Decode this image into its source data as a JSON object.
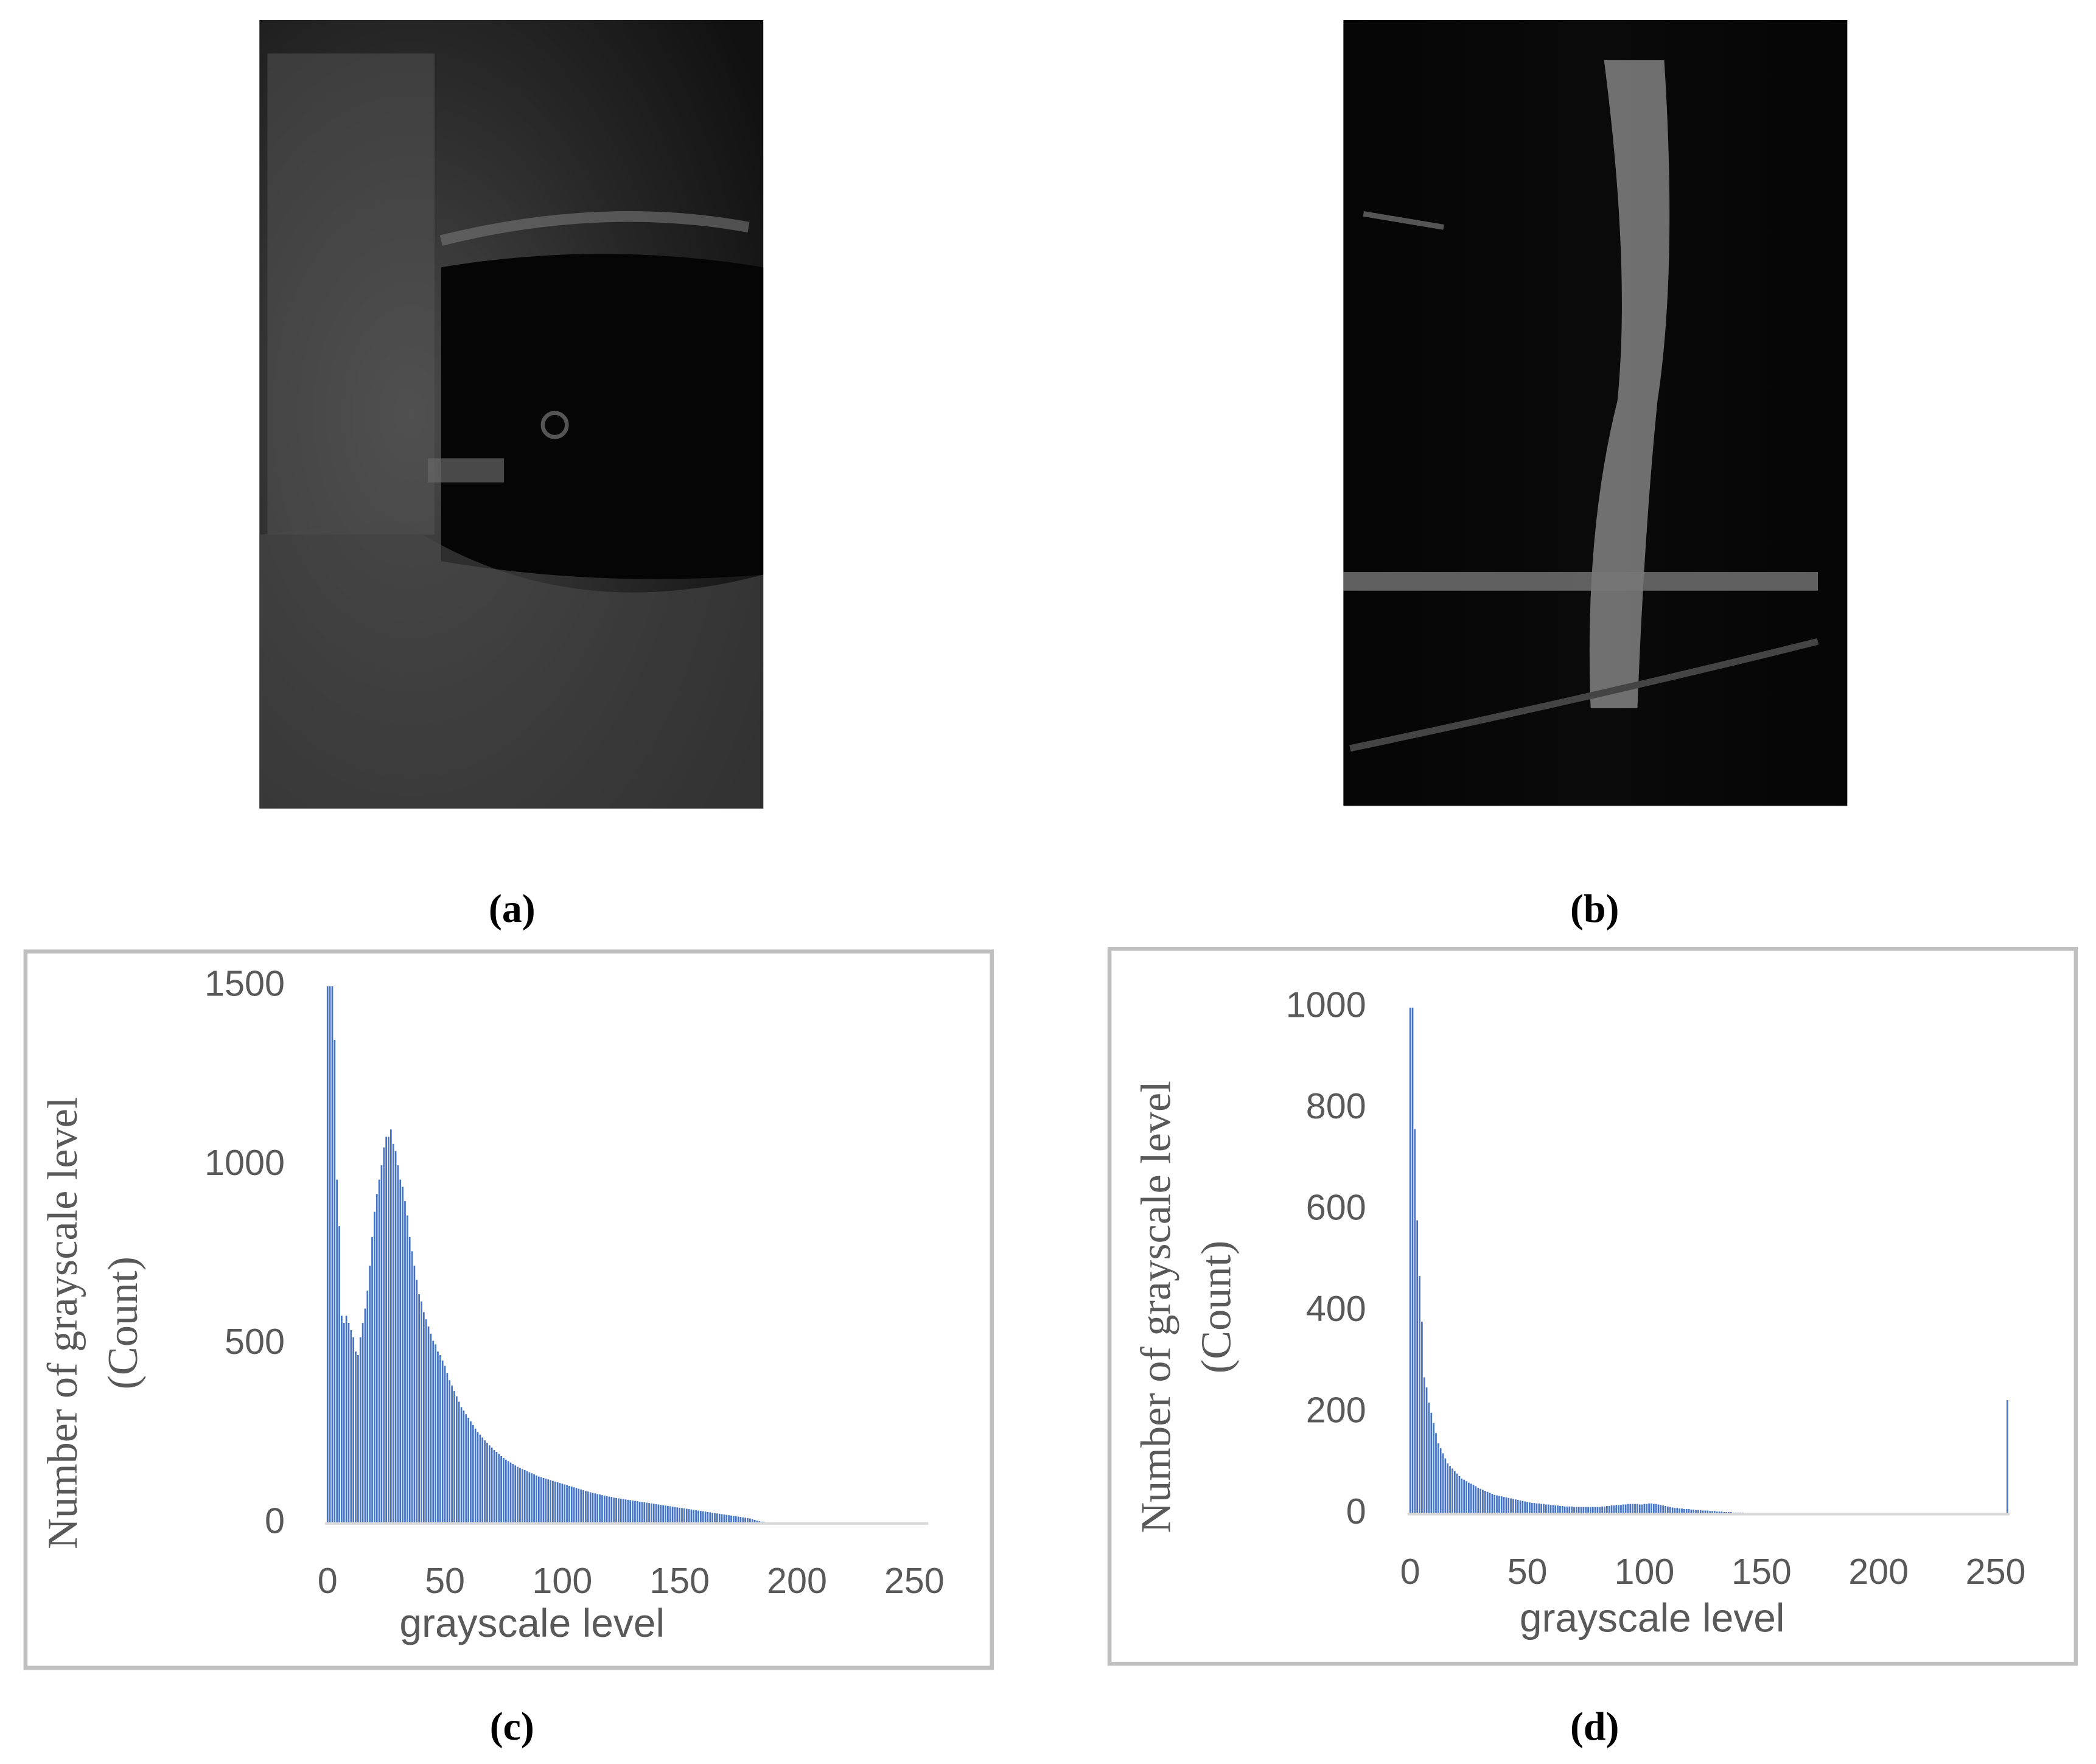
{
  "captions": [
    "(a)",
    "(b)",
    "(c)",
    "(d)"
  ],
  "chart_data": [
    {
      "type": "bar",
      "xlabel": "grayscale level",
      "ylabel": [
        "Number of grayscale level",
        "(Count)"
      ],
      "color": "#4472c4",
      "grid": false,
      "xlim": [
        0,
        256
      ],
      "xticks": [
        0,
        50,
        100,
        150,
        200,
        250
      ],
      "ylim": [
        0,
        1500
      ],
      "yticks": [
        0,
        500,
        1000,
        1500
      ],
      "x": [
        0,
        1,
        2,
        3,
        4,
        5,
        6,
        7,
        8,
        9,
        10,
        11,
        12,
        13,
        14,
        15,
        16,
        17,
        18,
        19,
        20,
        21,
        22,
        23,
        24,
        25,
        26,
        27,
        28,
        29,
        30,
        31,
        32,
        33,
        34,
        35,
        36,
        37,
        38,
        39,
        40,
        41,
        42,
        43,
        44,
        45,
        46,
        47,
        48,
        49,
        50,
        51,
        52,
        53,
        54,
        55,
        56,
        57,
        58,
        59,
        60,
        61,
        62,
        63,
        64,
        65,
        66,
        67,
        68,
        69,
        70,
        71,
        72,
        73,
        74,
        75,
        76,
        77,
        78,
        79,
        80,
        81,
        82,
        83,
        84,
        85,
        86,
        87,
        88,
        89,
        90,
        91,
        92,
        93,
        94,
        95,
        96,
        97,
        98,
        99,
        100,
        101,
        102,
        103,
        104,
        105,
        106,
        107,
        108,
        109,
        110,
        111,
        112,
        113,
        114,
        115,
        116,
        117,
        118,
        119,
        120,
        121,
        122,
        123,
        124,
        125,
        126,
        127,
        128,
        129,
        130,
        131,
        132,
        133,
        134,
        135,
        136,
        137,
        138,
        139,
        140,
        141,
        142,
        143,
        144,
        145,
        146,
        147,
        148,
        149,
        150,
        151,
        152,
        153,
        154,
        155,
        156,
        157,
        158,
        159,
        160,
        161,
        162,
        163,
        164,
        165,
        166,
        167,
        168,
        169,
        170,
        171,
        172,
        173,
        174,
        175,
        176,
        177,
        178,
        179,
        180,
        181,
        182,
        183,
        184,
        185,
        186,
        187,
        188,
        189,
        190,
        191,
        192,
        193,
        194,
        195,
        196,
        197,
        198,
        199,
        200,
        201,
        202,
        203,
        204,
        205,
        206,
        207,
        208,
        209,
        210,
        211,
        212,
        213,
        214,
        215,
        216,
        217,
        218,
        219,
        220,
        221,
        222,
        223,
        224,
        225,
        226,
        227,
        228,
        229,
        230,
        231,
        232,
        233,
        234,
        235,
        236,
        237,
        238,
        239,
        240,
        241,
        242,
        243,
        244,
        245,
        246,
        247,
        248,
        249,
        250,
        251,
        252,
        253,
        254,
        255
      ],
      "values": [
        1500,
        1500,
        1500,
        1350,
        960,
        830,
        580,
        560,
        580,
        560,
        540,
        520,
        480,
        470,
        520,
        560,
        600,
        650,
        720,
        800,
        870,
        920,
        960,
        1000,
        1050,
        1080,
        1080,
        1100,
        1060,
        1040,
        1000,
        960,
        940,
        900,
        860,
        800,
        760,
        720,
        680,
        640,
        620,
        590,
        570,
        550,
        530,
        510,
        500,
        480,
        470,
        455,
        440,
        420,
        400,
        385,
        370,
        355,
        340,
        325,
        315,
        305,
        295,
        285,
        275,
        265,
        255,
        248,
        240,
        232,
        225,
        218,
        212,
        205,
        200,
        194,
        188,
        183,
        178,
        174,
        170,
        166,
        162,
        158,
        155,
        152,
        149,
        146,
        143,
        140,
        137,
        134,
        131,
        129,
        127,
        125,
        123,
        121,
        119,
        117,
        115,
        113,
        111,
        109,
        107,
        105,
        103,
        101,
        99,
        97,
        95,
        93,
        91,
        89,
        87,
        85,
        84,
        82,
        81,
        79,
        78,
        76,
        75,
        74,
        72,
        71,
        70,
        69,
        68,
        67,
        66,
        65,
        64,
        63,
        62,
        61,
        60,
        59,
        58,
        57,
        56,
        55,
        54,
        53,
        52,
        51,
        50,
        49,
        48,
        47,
        46,
        45,
        44,
        43,
        42,
        41,
        40,
        39,
        38,
        37,
        36,
        35,
        34,
        33,
        32,
        31,
        30,
        29,
        28,
        27,
        26,
        25,
        24,
        23,
        22,
        21,
        20,
        19,
        18,
        17,
        16,
        15,
        14,
        12,
        10,
        8,
        6,
        5,
        4,
        3,
        2,
        1,
        0,
        0,
        0,
        0,
        0,
        0,
        0,
        0,
        0,
        0,
        0,
        0,
        0,
        0,
        0,
        0,
        0,
        0,
        0,
        0,
        0,
        0,
        0,
        0,
        0,
        0,
        0,
        0,
        0,
        0,
        0,
        0,
        0,
        0,
        0,
        0,
        0,
        0,
        0,
        0,
        0,
        0,
        0,
        0,
        0,
        0,
        0,
        0,
        0,
        0,
        0,
        0,
        0,
        0,
        0,
        0,
        0,
        0,
        0,
        0,
        0,
        0,
        0,
        0,
        0,
        0
      ]
    },
    {
      "type": "bar",
      "xlabel": "grayscale level",
      "ylabel": [
        "Number of grayscale level",
        "(Count)"
      ],
      "color": "#4472c4",
      "grid": false,
      "xlim": [
        0,
        256
      ],
      "xticks": [
        0,
        50,
        100,
        150,
        200,
        250
      ],
      "ylim": [
        0,
        1000
      ],
      "yticks": [
        0,
        200,
        400,
        600,
        800,
        1000
      ],
      "x": [
        0,
        1,
        2,
        3,
        4,
        5,
        6,
        7,
        8,
        9,
        10,
        11,
        12,
        13,
        14,
        15,
        16,
        17,
        18,
        19,
        20,
        21,
        22,
        23,
        24,
        25,
        26,
        27,
        28,
        29,
        30,
        31,
        32,
        33,
        34,
        35,
        36,
        37,
        38,
        39,
        40,
        41,
        42,
        43,
        44,
        45,
        46,
        47,
        48,
        49,
        50,
        51,
        52,
        53,
        54,
        55,
        56,
        57,
        58,
        59,
        60,
        61,
        62,
        63,
        64,
        65,
        66,
        67,
        68,
        69,
        70,
        71,
        72,
        73,
        74,
        75,
        76,
        77,
        78,
        79,
        80,
        81,
        82,
        83,
        84,
        85,
        86,
        87,
        88,
        89,
        90,
        91,
        92,
        93,
        94,
        95,
        96,
        97,
        98,
        99,
        100,
        101,
        102,
        103,
        104,
        105,
        106,
        107,
        108,
        109,
        110,
        111,
        112,
        113,
        114,
        115,
        116,
        117,
        118,
        119,
        120,
        121,
        122,
        123,
        124,
        125,
        126,
        127,
        128,
        129,
        130,
        131,
        132,
        133,
        134,
        135,
        136,
        137,
        138,
        139,
        140,
        141,
        142,
        143,
        144,
        145,
        146,
        147,
        148,
        149,
        150,
        151,
        152,
        153,
        154,
        155,
        156,
        157,
        158,
        159,
        160,
        161,
        162,
        163,
        164,
        165,
        166,
        167,
        168,
        169,
        170,
        171,
        172,
        173,
        174,
        175,
        176,
        177,
        178,
        179,
        180,
        181,
        182,
        183,
        184,
        185,
        186,
        187,
        188,
        189,
        190,
        191,
        192,
        193,
        194,
        195,
        196,
        197,
        198,
        199,
        200,
        201,
        202,
        203,
        204,
        205,
        206,
        207,
        208,
        209,
        210,
        211,
        212,
        213,
        214,
        215,
        216,
        217,
        218,
        219,
        220,
        221,
        222,
        223,
        224,
        225,
        226,
        227,
        228,
        229,
        230,
        231,
        232,
        233,
        234,
        235,
        236,
        237,
        238,
        239,
        240,
        241,
        242,
        243,
        244,
        245,
        246,
        247,
        248,
        249,
        250,
        251,
        252,
        253,
        254,
        255
      ],
      "values": [
        1000,
        1000,
        760,
        580,
        470,
        380,
        270,
        250,
        220,
        200,
        180,
        160,
        140,
        130,
        120,
        110,
        100,
        95,
        90,
        85,
        80,
        75,
        70,
        68,
        65,
        62,
        60,
        58,
        55,
        52,
        50,
        48,
        46,
        44,
        42,
        40,
        38,
        37,
        36,
        35,
        34,
        33,
        32,
        31,
        30,
        29,
        28,
        27,
        26,
        25,
        24,
        23,
        22,
        22,
        21,
        21,
        20,
        20,
        19,
        19,
        18,
        18,
        17,
        17,
        16,
        16,
        15,
        15,
        15,
        15,
        14,
        14,
        14,
        14,
        14,
        14,
        14,
        14,
        14,
        14,
        14,
        14,
        15,
        15,
        16,
        16,
        17,
        17,
        18,
        18,
        18,
        19,
        19,
        20,
        20,
        20,
        20,
        20,
        19,
        19,
        20,
        20,
        21,
        21,
        20,
        20,
        19,
        18,
        17,
        16,
        15,
        14,
        13,
        12,
        12,
        11,
        11,
        10,
        10,
        10,
        9,
        9,
        8,
        8,
        8,
        7,
        7,
        7,
        6,
        6,
        6,
        5,
        5,
        5,
        4,
        4,
        4,
        4,
        3,
        3,
        3,
        3,
        3,
        2,
        2,
        2,
        2,
        2,
        1,
        1,
        1,
        1,
        1,
        1,
        1,
        1,
        1,
        1,
        1,
        1,
        0,
        0,
        0,
        0,
        0,
        0,
        0,
        0,
        0,
        0,
        0,
        0,
        0,
        0,
        0,
        0,
        0,
        0,
        0,
        0,
        0,
        0,
        0,
        0,
        0,
        0,
        0,
        0,
        0,
        0,
        0,
        0,
        0,
        0,
        0,
        0,
        0,
        0,
        0,
        0,
        0,
        0,
        0,
        0,
        0,
        0,
        0,
        0,
        0,
        0,
        0,
        0,
        0,
        0,
        0,
        0,
        0,
        0,
        0,
        0,
        0,
        0,
        0,
        0,
        0,
        0,
        0,
        0,
        0,
        0,
        0,
        0,
        0,
        0,
        0,
        0,
        0,
        0,
        0,
        0,
        0,
        0,
        0,
        0,
        0,
        0,
        0,
        0,
        0,
        0,
        0,
        0,
        0,
        0,
        0,
        225
      ]
    }
  ]
}
